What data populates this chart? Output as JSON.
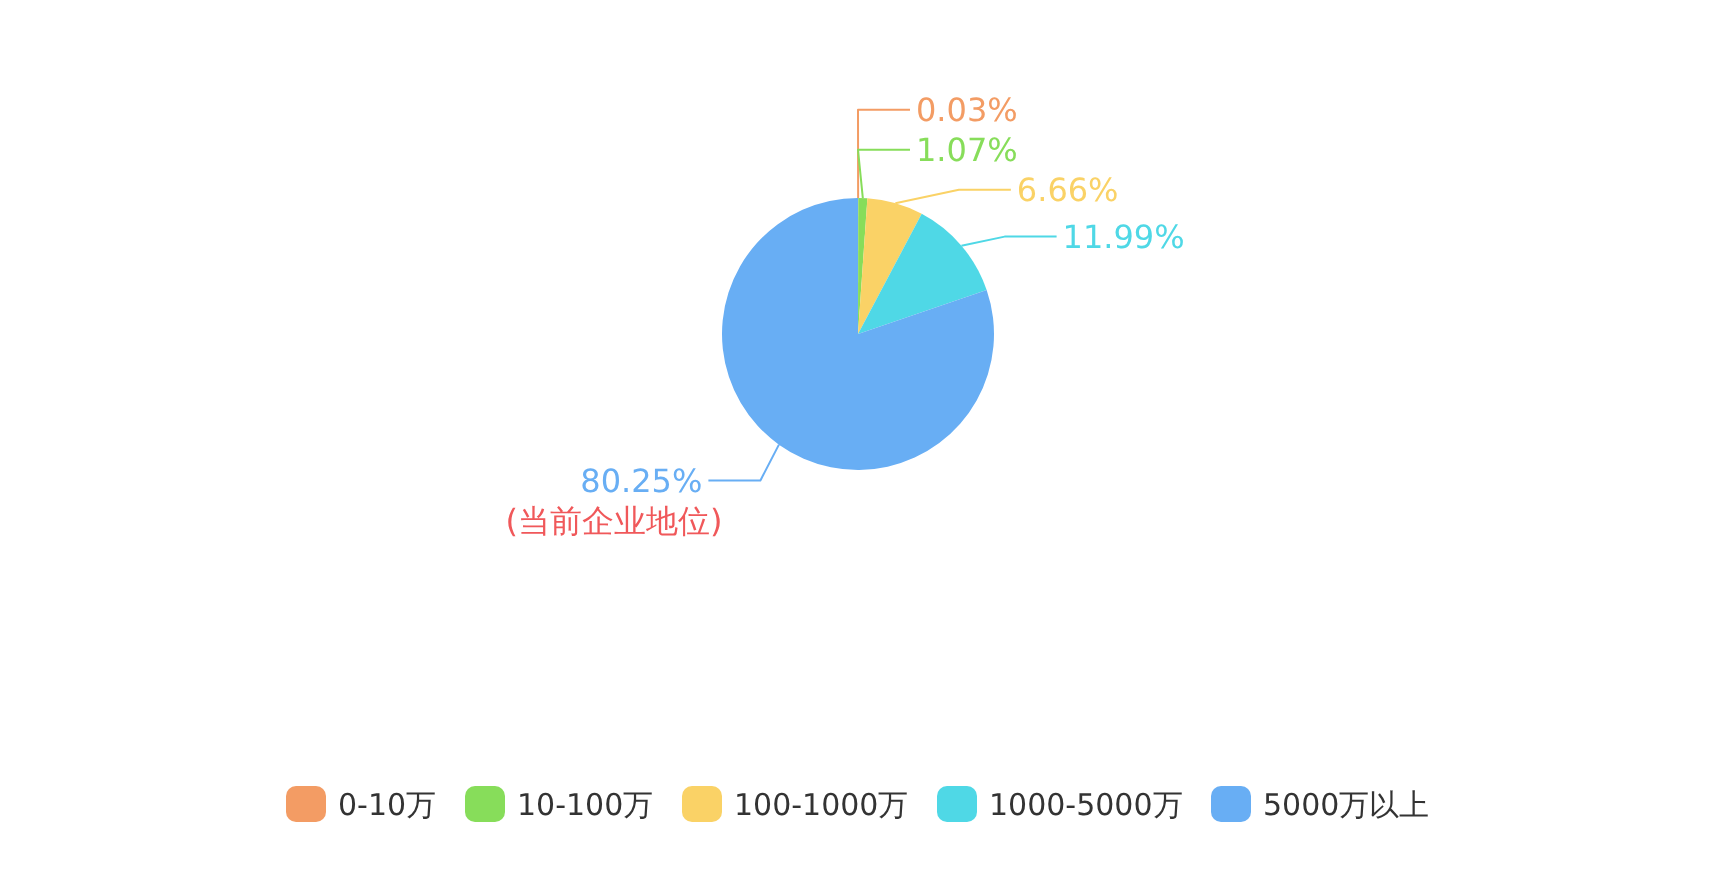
{
  "chart_data": {
    "type": "pie",
    "categories": [
      "0-10万",
      "10-100万",
      "100-1000万",
      "1000-5000万",
      "5000万以上"
    ],
    "values": [
      0.03,
      1.07,
      6.66,
      11.99,
      80.25
    ],
    "colors": [
      "#f39c64",
      "#87dd5a",
      "#fad266",
      "#4fd8e6",
      "#68aef4"
    ],
    "data_labels": true,
    "value_labels": [
      "0.03%",
      "1.07%",
      "6.66%",
      "11.99%",
      "80.25%"
    ],
    "annotations": [
      "(当前企业地位)"
    ],
    "legend": "bottom"
  }
}
